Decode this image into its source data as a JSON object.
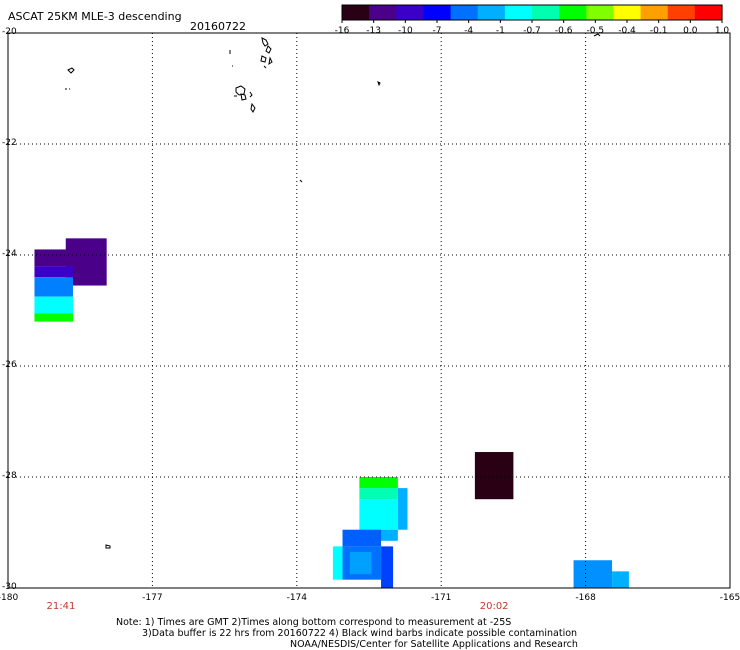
{
  "header": {
    "title": "ASCAT 25KM MLE-3 descending",
    "date": "20160722"
  },
  "colorbar": {
    "labels": [
      "-16",
      "-13",
      "-10",
      "-7",
      "-4",
      "-1",
      "-0.7",
      "-0.6",
      "-0.5",
      "-0.4",
      "-0.1",
      "0.0",
      "1.0"
    ],
    "colors": [
      "#2a0015",
      "#4b008a",
      "#3a00c8",
      "#0000ff",
      "#0070ff",
      "#00b0ff",
      "#00ffff",
      "#00ffb0",
      "#00ff00",
      "#80ff00",
      "#ffff00",
      "#ffa000",
      "#ff4000",
      "#ff0000"
    ]
  },
  "map": {
    "lon_range": [
      -180,
      -165
    ],
    "lat_range": [
      -30,
      -20
    ],
    "lon_ticks": [
      "-180",
      "-177",
      "-174",
      "-171",
      "-168",
      "-165"
    ],
    "lat_ticks": [
      "-20",
      "-22",
      "-24",
      "-26",
      "-28",
      "-30"
    ],
    "times": [
      {
        "label": "21:41",
        "lon": -178.9
      },
      {
        "label": "20:02",
        "lon": -169.9
      }
    ],
    "cells": [
      {
        "lon": [
          -179.45,
          -178.65
        ],
        "lat": [
          -24.2,
          -23.9
        ],
        "color": "#4b008a"
      },
      {
        "lon": [
          -178.8,
          -177.95
        ],
        "lat": [
          -24.55,
          -23.7
        ],
        "color": "#4b008a"
      },
      {
        "lon": [
          -179.45,
          -178.65
        ],
        "lat": [
          -24.4,
          -24.2
        ],
        "color": "#3a00c8"
      },
      {
        "lon": [
          -179.45,
          -178.65
        ],
        "lat": [
          -24.75,
          -24.4
        ],
        "color": "#0080ff"
      },
      {
        "lon": [
          -179.45,
          -178.65
        ],
        "lat": [
          -25.05,
          -24.75
        ],
        "color": "#00ffff"
      },
      {
        "lon": [
          -179.45,
          -178.65
        ],
        "lat": [
          -25.2,
          -25.05
        ],
        "color": "#00ff00"
      },
      {
        "lon": [
          -170.3,
          -169.5
        ],
        "lat": [
          -28.4,
          -27.55
        ],
        "color": "#2a0015"
      },
      {
        "lon": [
          -172.7,
          -171.9
        ],
        "lat": [
          -28.2,
          -28.0
        ],
        "color": "#00ff00"
      },
      {
        "lon": [
          -172.7,
          -171.9
        ],
        "lat": [
          -28.4,
          -28.2
        ],
        "color": "#00ffb0"
      },
      {
        "lon": [
          -172.7,
          -171.9
        ],
        "lat": [
          -28.95,
          -28.4
        ],
        "color": "#00ffff"
      },
      {
        "lon": [
          -171.9,
          -171.7
        ],
        "lat": [
          -28.95,
          -28.2
        ],
        "color": "#00b0ff"
      },
      {
        "lon": [
          -172.7,
          -171.9
        ],
        "lat": [
          -29.15,
          -28.95
        ],
        "color": "#00b0ff"
      },
      {
        "lon": [
          -173.05,
          -172.25
        ],
        "lat": [
          -29.25,
          -28.95
        ],
        "color": "#0060ff"
      },
      {
        "lon": [
          -173.05,
          -172.25
        ],
        "lat": [
          -29.85,
          -29.25
        ],
        "color": "#0070ff"
      },
      {
        "lon": [
          -173.25,
          -173.05
        ],
        "lat": [
          -29.85,
          -29.25
        ],
        "color": "#00ffff"
      },
      {
        "lon": [
          -172.9,
          -172.45
        ],
        "lat": [
          -29.75,
          -29.35
        ],
        "color": "#00a0ff"
      },
      {
        "lon": [
          -172.25,
          -172.0
        ],
        "lat": [
          -30.0,
          -29.25
        ],
        "color": "#0040ff"
      },
      {
        "lon": [
          -168.25,
          -167.45
        ],
        "lat": [
          -30.0,
          -29.5
        ],
        "color": "#0090ff"
      },
      {
        "lon": [
          -167.45,
          -167.1
        ],
        "lat": [
          -30.0,
          -29.7
        ],
        "color": "#00b0ff"
      }
    ]
  },
  "notes": [
    "Note: 1) Times are GMT 2)Times along bottom correspond to measurement at -25S",
    "3)Data buffer is 22 hrs from 20160722 4) Black wind barbs indicate possible contamination",
    "NOAA/NESDIS/Center for Satellite Applications and Research"
  ]
}
